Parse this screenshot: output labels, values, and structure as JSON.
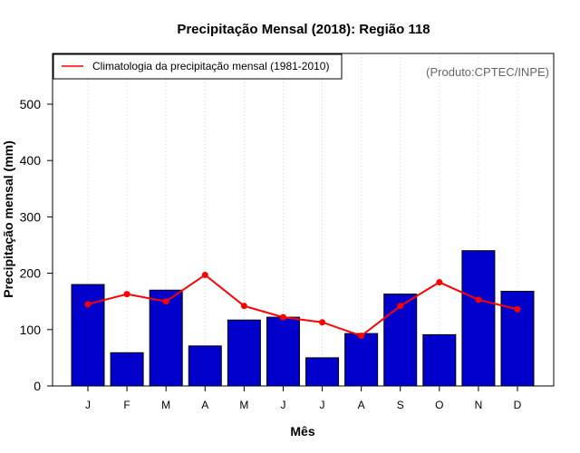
{
  "chart_data": {
    "type": "bar",
    "title": "Precipitação Mensal (2018): Região 118",
    "xlabel": "Mês",
    "ylabel": "Precipitação mensal (mm)",
    "credit": "(Produto:CPTEC/INPE)",
    "categories": [
      "J",
      "F",
      "M",
      "A",
      "M",
      "J",
      "J",
      "A",
      "S",
      "O",
      "N",
      "D"
    ],
    "ylim": [
      0,
      590
    ],
    "yticks": [
      0,
      100,
      200,
      300,
      400,
      500
    ],
    "grid": true,
    "series": [
      {
        "name": "Precipitação mensal (2018)",
        "type": "bar",
        "color": "#0000cd",
        "values": [
          180,
          59,
          170,
          71,
          117,
          122,
          50,
          93,
          163,
          91,
          240,
          168
        ]
      },
      {
        "name": "Climatologia da precipitação mensal (1981-2010)",
        "type": "line",
        "color": "#ff0000",
        "values": [
          145,
          163,
          150,
          197,
          142,
          122,
          113,
          89,
          142,
          184,
          153,
          136
        ]
      }
    ],
    "legend": {
      "position": "top-left",
      "entries": [
        "Climatologia da precipitação mensal (1981-2010)"
      ]
    }
  }
}
